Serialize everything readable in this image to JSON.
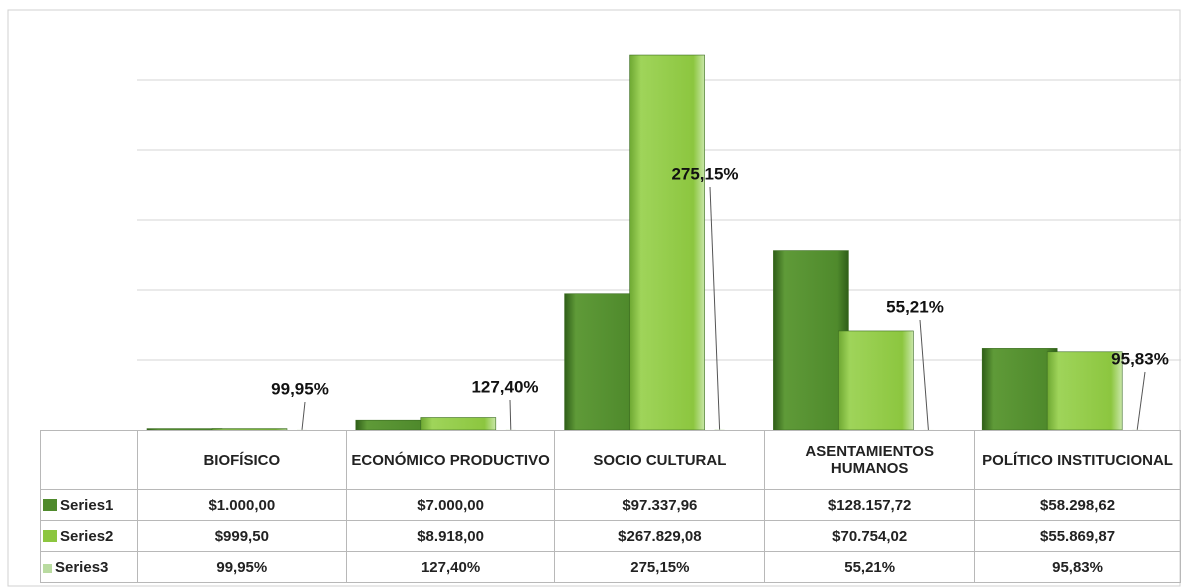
{
  "chart_data": {
    "type": "bar",
    "categories": [
      "BIOFÍSICO",
      "ECONÓMICO PRODUCTIVO",
      "SOCIO CULTURAL",
      "ASENTAMIENTOS HUMANOS",
      "POLÍTICO INSTITUCIONAL"
    ],
    "series": [
      {
        "name": "Series1",
        "color": "#4f8a2c",
        "values": [
          1000,
          7000,
          97337.96,
          128157.72,
          58298.62
        ],
        "value_labels": [
          "$1.000,00",
          "$7.000,00",
          "$97.337,96",
          "$128.157,72",
          "$58.298,62"
        ]
      },
      {
        "name": "Series2",
        "color": "#8cc63f",
        "values": [
          999.5,
          8918,
          267829.08,
          70754.02,
          55869.87
        ],
        "value_labels": [
          "$999,50",
          "$8.918,00",
          "$267.829,08",
          "$70.754,02",
          "$55.869,87"
        ]
      },
      {
        "name": "Series3",
        "color": "#b9dba0",
        "values": [
          99.95,
          127.4,
          275.15,
          55.21,
          95.83
        ],
        "value_labels": [
          "99,95%",
          "127,40%",
          "275,15%",
          "55,21%",
          "95,83%"
        ]
      }
    ],
    "ylim": [
      0,
      300000
    ],
    "yticks": [
      0,
      50000,
      100000,
      150000,
      200000,
      250000,
      300000
    ],
    "grid": true
  }
}
